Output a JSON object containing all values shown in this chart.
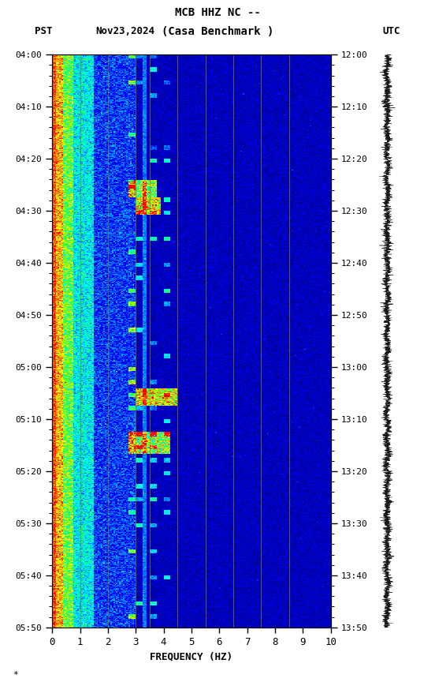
{
  "title_line1": "MCB HHZ NC --",
  "title_line2": "(Casa Benchmark )",
  "label_left": "PST",
  "label_date": "Nov23,2024",
  "label_right": "UTC",
  "freq_ticks": [
    0,
    1,
    2,
    3,
    4,
    5,
    6,
    7,
    8,
    9,
    10
  ],
  "xlabel": "FREQUENCY (HZ)",
  "background_color": "#ffffff",
  "spectrogram_bg": "#00008B",
  "vertical_line_color": "#8B8000",
  "vertical_lines_freq": [
    1.0,
    2.0,
    3.0,
    3.5,
    4.5,
    5.5,
    6.5,
    7.5,
    8.5
  ],
  "total_minutes": 110,
  "figsize": [
    5.52,
    8.64
  ],
  "dpi": 100
}
